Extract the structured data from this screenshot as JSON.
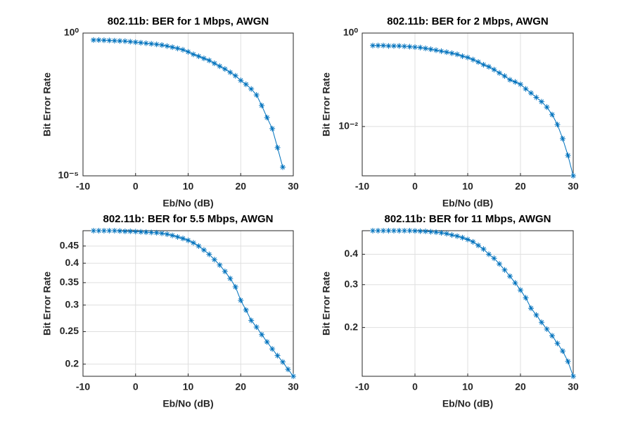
{
  "chart_data": [
    {
      "type": "line",
      "title": "802.11b: BER for 1 Mbps, AWGN",
      "x_label": "Eb/No (dB)",
      "y_label": "Bit Error Rate",
      "log_y": true,
      "grid": true,
      "x": [
        -8,
        -7,
        -6,
        -5,
        -4,
        -3,
        -2,
        -1,
        0,
        1,
        2,
        3,
        4,
        5,
        6,
        7,
        8,
        9,
        10,
        11,
        12,
        13,
        14,
        15,
        16,
        17,
        18,
        19,
        20,
        21,
        22,
        23,
        24,
        25,
        26,
        27,
        28
      ],
      "series": [
        {
          "name": "BER",
          "color": "#0072bd",
          "values": [
            0.57,
            0.57,
            0.56,
            0.55,
            0.54,
            0.53,
            0.52,
            0.5,
            0.48,
            0.46,
            0.44,
            0.42,
            0.4,
            0.38,
            0.35,
            0.32,
            0.29,
            0.26,
            0.22,
            0.18,
            0.154,
            0.13,
            0.11,
            0.087,
            0.069,
            0.055,
            0.042,
            0.032,
            0.022,
            0.016,
            0.011,
            0.0068,
            0.0029,
            0.0011,
            0.00045,
            9.7e-05,
            2e-05
          ]
        }
      ],
      "xlim": [
        -10,
        30
      ],
      "xticks": [
        -10,
        0,
        10,
        20,
        30
      ],
      "ylim": [
        1e-05,
        1
      ],
      "yticks": [
        {
          "value": 1e-05,
          "label": "10⁻⁵"
        },
        {
          "value": 1,
          "label": "10⁰"
        }
      ]
    },
    {
      "type": "line",
      "title": "802.11b: BER for 2 Mbps, AWGN",
      "x_label": "Eb/No (dB)",
      "y_label": "Bit Error Rate",
      "log_y": true,
      "grid": true,
      "x": [
        -8,
        -7,
        -6,
        -5,
        -4,
        -3,
        -2,
        -1,
        0,
        1,
        2,
        3,
        4,
        5,
        6,
        7,
        8,
        9,
        10,
        11,
        12,
        13,
        14,
        15,
        16,
        17,
        18,
        19,
        20,
        21,
        22,
        23,
        24,
        25,
        26,
        27,
        28,
        29,
        30
      ],
      "series": [
        {
          "name": "BER",
          "color": "#0072bd",
          "values": [
            0.54,
            0.54,
            0.54,
            0.53,
            0.53,
            0.53,
            0.52,
            0.51,
            0.5,
            0.49,
            0.47,
            0.45,
            0.43,
            0.41,
            0.39,
            0.37,
            0.35,
            0.32,
            0.3,
            0.27,
            0.24,
            0.21,
            0.19,
            0.165,
            0.14,
            0.12,
            0.1,
            0.09,
            0.08,
            0.064,
            0.052,
            0.042,
            0.034,
            0.026,
            0.018,
            0.011,
            0.0055,
            0.0024,
            0.00088
          ]
        }
      ],
      "xlim": [
        -10,
        30
      ],
      "xticks": [
        -10,
        0,
        10,
        20,
        30
      ],
      "ylim": [
        0.00088,
        1
      ],
      "yticks": [
        {
          "value": 0.01,
          "label": "10⁻²"
        },
        {
          "value": 1,
          "label": "10⁰"
        }
      ]
    },
    {
      "type": "line",
      "title": "802.11b: BER for 5.5 Mbps, AWGN",
      "x_label": "Eb/No (dB)",
      "y_label": "Bit Error Rate",
      "log_y": true,
      "grid": true,
      "x": [
        -8,
        -7,
        -6,
        -5,
        -4,
        -3,
        -2,
        -1,
        0,
        1,
        2,
        3,
        4,
        5,
        6,
        7,
        8,
        9,
        10,
        11,
        12,
        13,
        14,
        15,
        16,
        17,
        18,
        19,
        20,
        21,
        22,
        23,
        24,
        25,
        26,
        27,
        28,
        29,
        30
      ],
      "series": [
        {
          "name": "BER",
          "color": "#0072bd",
          "values": [
            0.5,
            0.5,
            0.5,
            0.5,
            0.5,
            0.499,
            0.498,
            0.498,
            0.497,
            0.496,
            0.495,
            0.494,
            0.493,
            0.491,
            0.488,
            0.484,
            0.479,
            0.474,
            0.468,
            0.46,
            0.45,
            0.438,
            0.425,
            0.41,
            0.395,
            0.378,
            0.36,
            0.34,
            0.31,
            0.29,
            0.27,
            0.258,
            0.245,
            0.233,
            0.222,
            0.212,
            0.203,
            0.193,
            0.184
          ]
        }
      ],
      "xlim": [
        -10,
        30
      ],
      "xticks": [
        -10,
        0,
        10,
        20,
        30
      ],
      "ylim": [
        0.184,
        0.5
      ],
      "yticks": [
        0.2,
        0.25,
        0.3,
        0.35,
        0.4,
        0.45
      ]
    },
    {
      "type": "line",
      "title": "802.11b: BER for 11 Mbps, AWGN",
      "x_label": "Eb/No (dB)",
      "y_label": "Bit Error Rate",
      "log_y": true,
      "grid": true,
      "x": [
        -8,
        -7,
        -6,
        -5,
        -4,
        -3,
        -2,
        -1,
        0,
        1,
        2,
        3,
        4,
        5,
        6,
        7,
        8,
        9,
        10,
        11,
        12,
        13,
        14,
        15,
        16,
        17,
        18,
        19,
        20,
        21,
        22,
        23,
        24,
        25,
        26,
        27,
        28,
        29,
        30
      ],
      "series": [
        {
          "name": "BER",
          "color": "#0072bd",
          "values": [
            0.5,
            0.5,
            0.5,
            0.5,
            0.5,
            0.5,
            0.5,
            0.5,
            0.499,
            0.498,
            0.497,
            0.495,
            0.493,
            0.49,
            0.486,
            0.48,
            0.475,
            0.468,
            0.46,
            0.45,
            0.435,
            0.42,
            0.4,
            0.385,
            0.365,
            0.345,
            0.325,
            0.305,
            0.285,
            0.265,
            0.24,
            0.225,
            0.21,
            0.197,
            0.185,
            0.172,
            0.16,
            0.145,
            0.126
          ]
        }
      ],
      "xlim": [
        -10,
        30
      ],
      "xticks": [
        -10,
        0,
        10,
        20,
        30
      ],
      "ylim": [
        0.126,
        0.5
      ],
      "yticks": [
        0.2,
        0.3,
        0.4
      ]
    }
  ]
}
